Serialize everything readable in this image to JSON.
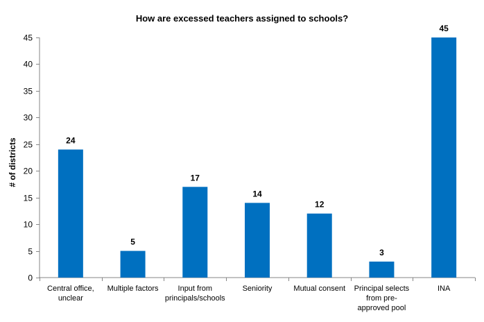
{
  "chart_data": {
    "type": "bar",
    "title": "How are excessed teachers assigned to schools?",
    "xlabel": "",
    "ylabel": "# of districts",
    "ylim": [
      0,
      45
    ],
    "yticks": [
      0,
      5,
      10,
      15,
      20,
      25,
      30,
      35,
      40,
      45
    ],
    "categories": [
      [
        "Central office,",
        "unclear"
      ],
      [
        "Multiple factors"
      ],
      [
        "Input from",
        "principals/schools"
      ],
      [
        "Seniority"
      ],
      [
        "Mutual consent"
      ],
      [
        "Principal selects",
        "from pre-",
        "approved pool"
      ],
      [
        "INA"
      ]
    ],
    "values": [
      24,
      5,
      17,
      14,
      12,
      3,
      45
    ],
    "data_labels": [
      "24",
      "5",
      "17",
      "14",
      "12",
      "3",
      "45"
    ],
    "bar_color": "#0070C0",
    "grid": false,
    "legend": "none"
  }
}
